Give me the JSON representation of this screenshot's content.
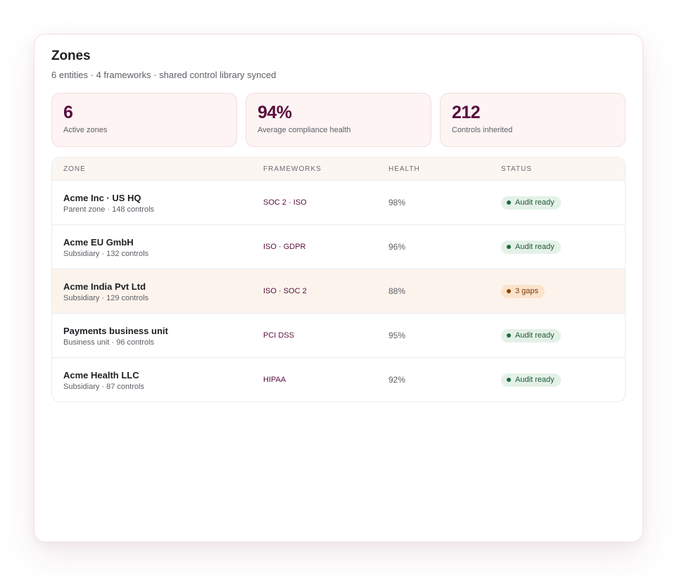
{
  "header": {
    "title": "Zones",
    "subtitle": "6 entities · 4 frameworks · shared control library synced"
  },
  "stats": [
    {
      "value": "6",
      "label": "Active zones"
    },
    {
      "value": "94%",
      "label": "Average compliance health"
    },
    {
      "value": "212",
      "label": "Controls inherited"
    }
  ],
  "table": {
    "columns": [
      "Zone",
      "Frameworks",
      "Health",
      "Status"
    ],
    "rows": [
      {
        "name": "Acme Inc · US HQ",
        "meta": "Parent zone · 148 controls",
        "frameworks": "SOC 2 · ISO",
        "health": "98%",
        "status": "Audit ready"
      },
      {
        "name": "Acme EU GmbH",
        "meta": "Subsidiary · 132 controls",
        "frameworks": "ISO · GDPR",
        "health": "96%",
        "status": "Audit ready"
      },
      {
        "name": "Acme India Pvt Ltd",
        "meta": "Subsidiary · 129 controls",
        "frameworks": "ISO · SOC 2",
        "health": "88%",
        "status": "3 gaps"
      },
      {
        "name": "Payments business unit",
        "meta": "Business unit · 96 controls",
        "frameworks": "PCI DSS",
        "health": "95%",
        "status": "Audit ready"
      },
      {
        "name": "Acme Health LLC",
        "meta": "Subsidiary · 87 controls",
        "frameworks": "HIPAA",
        "health": "92%",
        "status": "Audit ready"
      }
    ]
  },
  "colors": {
    "accent": "#5a0d3d",
    "status_ok_bg": "#e4f1e8",
    "status_warn_bg": "#fbe3cc",
    "highlight_row": "#fcf4ec"
  }
}
